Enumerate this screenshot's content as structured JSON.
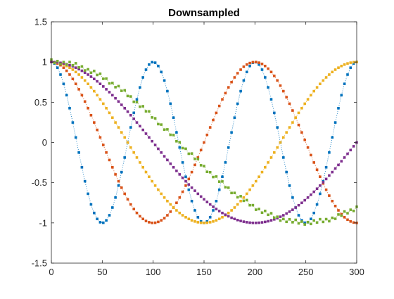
{
  "chart_data": {
    "type": "scatter",
    "title": "Downsampled",
    "xlabel": "",
    "ylabel": "",
    "xlim": [
      0,
      300
    ],
    "ylim": [
      -1.5,
      1.5
    ],
    "xticks": [
      "0",
      "50",
      "100",
      "150",
      "200",
      "250",
      "300"
    ],
    "yticks": [
      "1.5",
      "1",
      "0.5",
      "0",
      "-0.5",
      "-1",
      "-1.5"
    ],
    "grid": false,
    "legend": "none",
    "marker": "dotted line with square markers",
    "sample_spacing_x": 3,
    "series": [
      {
        "color": "#0072BD",
        "function": "cos(2*pi*x/100)",
        "period": 100,
        "description_values": {
          "x": [
            0,
            50,
            100,
            150,
            200,
            250,
            300
          ],
          "y": [
            1,
            -1,
            1,
            -1,
            1,
            -1,
            1
          ]
        }
      },
      {
        "color": "#D95319",
        "function": "cos(2*pi*x/200)",
        "period": 200,
        "description_values": {
          "x": [
            0,
            50,
            100,
            150,
            200,
            250,
            300
          ],
          "y": [
            1,
            0,
            -1,
            0,
            1,
            0,
            -1
          ]
        }
      },
      {
        "color": "#EDB120",
        "function": "cos(2*pi*x/300)",
        "period": 300,
        "description_values": {
          "x": [
            0,
            75,
            150,
            225,
            300
          ],
          "y": [
            1,
            0,
            -1,
            0,
            1
          ]
        }
      },
      {
        "color": "#7E2F8E",
        "function": "cos(2*pi*x/400)",
        "period": 400,
        "description_values": {
          "x": [
            0,
            100,
            200,
            300
          ],
          "y": [
            1,
            0,
            -1,
            0
          ]
        }
      },
      {
        "color": "#77AC30",
        "function": "cos(2*pi*x/500) with small jitter",
        "period": 500,
        "description_values": {
          "x": [
            0,
            125,
            250,
            300
          ],
          "y": [
            1,
            0,
            -1,
            -0.81
          ]
        }
      }
    ]
  }
}
